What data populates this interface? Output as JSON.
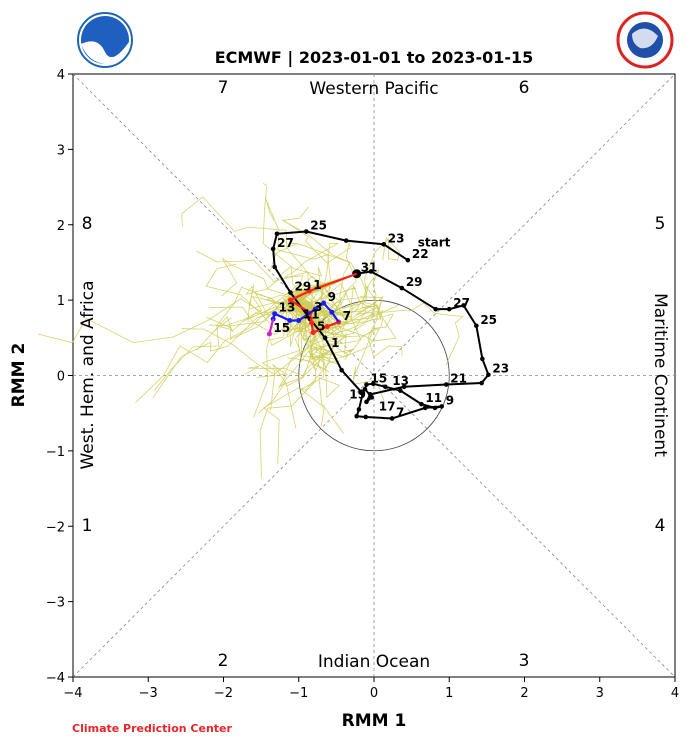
{
  "chart_data": {
    "type": "line",
    "title": "ECMWF | 2023-01-01 to 2023-01-15",
    "xlabel": "RMM 1",
    "ylabel": "RMM 2",
    "xlim": [
      -4,
      4
    ],
    "ylim": [
      -4,
      4
    ],
    "xticks": [
      "−4",
      "−3",
      "−2",
      "−1",
      "0",
      "1",
      "2",
      "3",
      "4"
    ],
    "yticks": [
      "−4",
      "−3",
      "−2",
      "−1",
      "0",
      "1",
      "2",
      "3",
      "4"
    ],
    "tick_values": [
      -4,
      -3,
      -2,
      -1,
      0,
      1,
      2,
      3,
      4
    ],
    "unit_circle_radius": 1,
    "regions": {
      "top": "Western Pacific",
      "bottom": "Indian Ocean",
      "left": "West. Hem. and Africa",
      "right": "Maritime Continent"
    },
    "phases": [
      {
        "label": "1",
        "pos": "left-lower"
      },
      {
        "label": "2",
        "pos": "bottom-left"
      },
      {
        "label": "3",
        "pos": "bottom-right"
      },
      {
        "label": "4",
        "pos": "right-lower"
      },
      {
        "label": "5",
        "pos": "right-upper"
      },
      {
        "label": "6",
        "pos": "top-right"
      },
      {
        "label": "7",
        "pos": "top-left"
      },
      {
        "label": "8",
        "pos": "left-upper"
      }
    ],
    "start_label": "start",
    "observed": {
      "color": "#000000",
      "points": [
        {
          "day": "22",
          "x": 0.45,
          "y": 1.53,
          "label": true
        },
        {
          "day": "23",
          "x": 0.13,
          "y": 1.74,
          "label": true
        },
        {
          "day": "24",
          "x": -0.37,
          "y": 1.79
        },
        {
          "day": "25",
          "x": -0.9,
          "y": 1.91,
          "label": true
        },
        {
          "day": "26",
          "x": -1.29,
          "y": 1.88
        },
        {
          "day": "27",
          "x": -1.34,
          "y": 1.68,
          "label": true
        },
        {
          "day": "28",
          "x": -1.32,
          "y": 1.44
        },
        {
          "day": "29",
          "x": -1.11,
          "y": 1.1,
          "label": true
        },
        {
          "day": "30",
          "x": -0.85,
          "y": 0.75
        },
        {
          "day": "1",
          "x": -0.65,
          "y": 0.5,
          "label": true
        },
        {
          "day": "2",
          "x": -0.43,
          "y": 0.07
        },
        {
          "day": "3",
          "x": -0.15,
          "y": -0.24
        },
        {
          "day": "4",
          "x": -0.2,
          "y": -0.45
        },
        {
          "day": "5",
          "x": -0.23,
          "y": -0.54
        },
        {
          "day": "6",
          "x": -0.11,
          "y": -0.55
        },
        {
          "day": "7",
          "x": 0.24,
          "y": -0.57,
          "label": true
        },
        {
          "day": "8",
          "x": 0.68,
          "y": -0.43
        },
        {
          "day": "9",
          "x": 0.9,
          "y": -0.41,
          "label": true
        },
        {
          "day": "10",
          "x": 0.81,
          "y": -0.43
        },
        {
          "day": "11",
          "x": 0.63,
          "y": -0.38,
          "label": true
        },
        {
          "day": "12",
          "x": 0.35,
          "y": -0.2
        },
        {
          "day": "13",
          "x": 0.15,
          "y": -0.15,
          "label": true
        },
        {
          "day": "14",
          "x": -0.01,
          "y": -0.11
        },
        {
          "day": "15",
          "x": -0.1,
          "y": -0.12,
          "label": true
        },
        {
          "day": "16",
          "x": -0.12,
          "y": -0.18
        },
        {
          "day": "17",
          "x": -0.03,
          "y": -0.29,
          "label": true
        },
        {
          "day": "18",
          "x": -0.1,
          "y": -0.35
        },
        {
          "day": "19",
          "x": -0.05,
          "y": -0.25,
          "label": true
        },
        {
          "day": "20",
          "x": 0.4,
          "y": -0.15
        },
        {
          "day": "21",
          "x": 0.96,
          "y": -0.12,
          "label": true
        },
        {
          "day": "22",
          "x": 1.43,
          "y": -0.1
        },
        {
          "day": "23",
          "x": 1.52,
          "y": 0.01,
          "label": true
        },
        {
          "day": "24",
          "x": 1.44,
          "y": 0.22
        },
        {
          "day": "25",
          "x": 1.36,
          "y": 0.66,
          "label": true
        },
        {
          "day": "26",
          "x": 1.19,
          "y": 0.93
        },
        {
          "day": "27",
          "x": 1.0,
          "y": 0.88,
          "label": true
        },
        {
          "day": "28",
          "x": 0.82,
          "y": 0.88
        },
        {
          "day": "29",
          "x": 0.37,
          "y": 1.16,
          "label": true
        },
        {
          "day": "30",
          "x": -0.04,
          "y": 1.38
        },
        {
          "day": "31",
          "x": -0.23,
          "y": 1.35,
          "label": true
        }
      ]
    },
    "forecast": {
      "segments": [
        {
          "color": "#ff2020",
          "days": [
            "31",
            "1",
            "2",
            "3",
            "4",
            "5",
            "6",
            "7"
          ]
        },
        {
          "color": "#1a1aff",
          "days": [
            "7",
            "8",
            "9",
            "10",
            "11",
            "12",
            "13",
            "14"
          ]
        },
        {
          "color": "#cc22cc",
          "days": [
            "14",
            "15"
          ]
        }
      ],
      "points": [
        {
          "day": "31",
          "x": -0.23,
          "y": 1.35
        },
        {
          "day": "1",
          "x": -0.86,
          "y": 1.12,
          "label": true
        },
        {
          "day": "2",
          "x": -1.11,
          "y": 1.0
        },
        {
          "day": "3",
          "x": -0.85,
          "y": 0.83,
          "label": true
        },
        {
          "day": "4",
          "x": -0.83,
          "y": 0.7
        },
        {
          "day": "5",
          "x": -0.81,
          "y": 0.57,
          "label": true
        },
        {
          "day": "6",
          "x": -0.62,
          "y": 0.65
        },
        {
          "day": "7",
          "x": -0.47,
          "y": 0.71,
          "label": true
        },
        {
          "day": "8",
          "x": -0.56,
          "y": 0.84
        },
        {
          "day": "9",
          "x": -0.67,
          "y": 0.96,
          "label": true
        },
        {
          "day": "10",
          "x": -0.78,
          "y": 0.88
        },
        {
          "day": "11",
          "x": -1.0,
          "y": 0.73,
          "label": true
        },
        {
          "day": "12",
          "x": -1.12,
          "y": 0.73
        },
        {
          "day": "13",
          "x": -1.32,
          "y": 0.82,
          "label": true
        },
        {
          "day": "14",
          "x": -1.34,
          "y": 0.75
        },
        {
          "day": "15",
          "x": -1.39,
          "y": 0.55,
          "label": true
        }
      ]
    },
    "ensemble_color": "#cccc55"
  },
  "branding": {
    "left_logo": "NOAA",
    "right_logo": "NATIONAL WEATHER SERVICE",
    "footer": "Climate Prediction Center"
  }
}
